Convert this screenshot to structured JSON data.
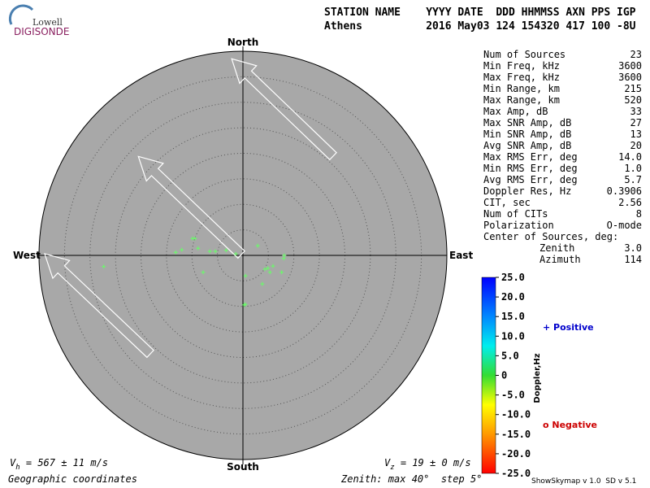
{
  "logo": {
    "top": "Lowell",
    "bottom": "DIGISONDE"
  },
  "header": {
    "columns": "STATION NAME    YYYY DATE  DDD HHMMSS AXN PPS IGP",
    "values": "Athens          2016 May03 124 154320 417 100 -8U"
  },
  "stats": [
    {
      "label": "Num of Sources",
      "value": "23"
    },
    {
      "label": "Min Freq, kHz",
      "value": "3600"
    },
    {
      "label": "Max Freq, kHz",
      "value": "3600"
    },
    {
      "label": "Min Range, km",
      "value": "215"
    },
    {
      "label": "Max Range, km",
      "value": "520"
    },
    {
      "label": "Max Amp, dB",
      "value": "33"
    },
    {
      "label": "Max SNR Amp, dB",
      "value": "27"
    },
    {
      "label": "Min SNR Amp, dB",
      "value": "13"
    },
    {
      "label": "Avg SNR Amp, dB",
      "value": "20"
    },
    {
      "label": "Max RMS Err, deg",
      "value": "14.0"
    },
    {
      "label": "Min RMS Err, deg",
      "value": "1.0"
    },
    {
      "label": "Avg RMS Err, deg",
      "value": "5.7"
    },
    {
      "label": "Doppler Res, Hz",
      "value": "0.3906"
    },
    {
      "label": "CIT, sec",
      "value": "2.56"
    },
    {
      "label": "Num of CITs",
      "value": "8"
    },
    {
      "label": "Polarization",
      "value": "O-mode"
    }
  ],
  "center": {
    "title": "Center of Sources, deg:",
    "rows": [
      {
        "label": "Zenith",
        "value": "3.0"
      },
      {
        "label": "Azimuth",
        "value": "114"
      }
    ]
  },
  "chart_data": {
    "type": "skymap",
    "directions": {
      "north": "North",
      "south": "South",
      "east": "East",
      "west": "West"
    },
    "rlim": 40,
    "rings": [
      5,
      10,
      15,
      20,
      25,
      30,
      35
    ],
    "east": [
      -9.4,
      -9.9,
      -8.8,
      -12.0,
      -13.2,
      -6.5,
      -5.4,
      -3.3,
      -1.4,
      -27.3,
      -7.8,
      2.9,
      8.1,
      8.0,
      5.9,
      4.3,
      4.9,
      5.3,
      7.6,
      0.5,
      3.8,
      0.2,
      0.5
    ],
    "north": [
      3.3,
      3.3,
      1.4,
      1.1,
      0.6,
      0.8,
      0.8,
      1.0,
      0.3,
      -2.2,
      -3.3,
      1.9,
      0,
      -0.6,
      -2.1,
      -2.7,
      -2.5,
      -3.3,
      -3.3,
      -4.0,
      -5.6,
      -9.7,
      -9.6
    ],
    "point_color": "#66ff66",
    "colorbar": {
      "title": "Doppler,Hz",
      "lim": [
        -25,
        25
      ],
      "ticks": [
        {
          "value": 25,
          "label": "25.0"
        },
        {
          "value": 20,
          "label": "20.0"
        },
        {
          "value": 15,
          "label": "15.0"
        },
        {
          "value": 10,
          "label": "10.0"
        },
        {
          "value": 5,
          "label": "5.0"
        },
        0,
        {
          "value": -5,
          "label": "-5.0"
        },
        {
          "value": -10,
          "label": "-10.0"
        },
        {
          "value": -15,
          "label": "-15.0"
        },
        {
          "value": -20,
          "label": "-20.0"
        },
        {
          "value": -25,
          "label": "-25.0"
        }
      ]
    },
    "legend": {
      "positive": "+ Positive",
      "negative": "o Negative"
    }
  },
  "footer": {
    "vh_sym": "V",
    "vh_sub": "h",
    "vh_text": " = 567 ± 11 m/s",
    "vz_sym": "V",
    "vz_sub": "z",
    "vz_text": " = 19 ± 0 m/s",
    "coords": "Geographic coordinates",
    "zenith": "Zenith: max 40°  step 5°",
    "version": "ShowSkymap v 1.0  SD v 5.1"
  }
}
